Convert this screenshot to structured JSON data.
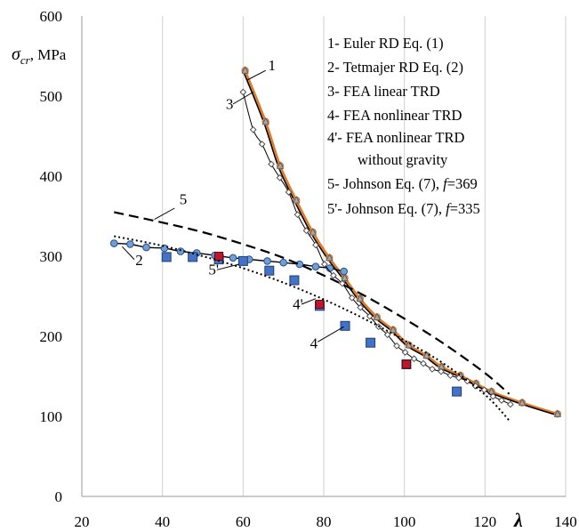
{
  "chart_data": {
    "type": "line",
    "xlabel": "λ",
    "ylabel_symbol": "σ",
    "ylabel_sub": "cr",
    "ylabel_unit": ", MPa",
    "xlim": [
      20,
      140
    ],
    "ylim": [
      0,
      600
    ],
    "x_ticks": [
      20,
      40,
      60,
      80,
      100,
      120,
      140
    ],
    "y_ticks": [
      0,
      100,
      200,
      300,
      400,
      500,
      600
    ],
    "grid": "vertical",
    "legend_position": "top-right",
    "legend": [
      "1- Euler RD Eq. (1)",
      "2- Tetmajer RD Eq. (2)",
      "3- FEA linear TRD",
      "4- FEA nonlinear TRD",
      "4'- FEA nonlinear TRD",
      "without gravity",
      "5- Johnson Eq. (7), f=369",
      "5'- Johnson Eq. (7), f=335"
    ],
    "series": [
      {
        "name": "1",
        "style": "solid-thick-orange-markers",
        "x": [
          60.5,
          65.6,
          69.2,
          73.2,
          77.3,
          81.4,
          85.2,
          89.0,
          93.2,
          97.2,
          101.1,
          105.5,
          109.2,
          113.9,
          117.8,
          121.6,
          129.2,
          138.0
        ],
        "y": [
          532,
          468,
          413,
          370,
          330,
          298,
          273,
          247,
          224,
          208,
          189,
          176,
          162,
          151,
          141,
          131,
          117,
          103
        ]
      },
      {
        "name": "2",
        "style": "solid-thin-blue-circles",
        "x": [
          28.0,
          32.0,
          36.0,
          40.5,
          44.5,
          48.5,
          53.0,
          57.5,
          61.5,
          66.0,
          70.0,
          74.0,
          78.0,
          81.5,
          85.0
        ],
        "y": [
          316,
          315,
          311,
          310,
          306,
          304,
          301,
          298,
          296,
          294,
          292,
          290,
          287,
          285,
          281
        ]
      },
      {
        "name": "3",
        "style": "thin-diamonds",
        "x": [
          60.0,
          62.5,
          64.7,
          67.0,
          69.1,
          71.3,
          73.5,
          75.7,
          78.0,
          80.2,
          82.4,
          84.6,
          87.0,
          89.1,
          91.4,
          93.6,
          95.8,
          98.1,
          100.2,
          102.4,
          104.7,
          106.9,
          109.1,
          111.4,
          113.5,
          115.6,
          117.6,
          119.8,
          122.0,
          124.1,
          126.3
        ],
        "y": [
          505,
          458,
          440,
          415,
          398,
          380,
          352,
          332,
          314,
          290,
          276,
          266,
          248,
          236,
          225,
          212,
          202,
          188,
          180,
          172,
          166,
          159,
          156,
          151,
          148,
          144,
          138,
          133,
          125,
          120,
          115
        ]
      },
      {
        "name": "4",
        "style": "blue-squares",
        "x": [
          41.0,
          47.5,
          54.0,
          60.0,
          66.5,
          72.7,
          79.0,
          85.3,
          91.6,
          100.5,
          113.0
        ],
        "y": [
          299,
          299,
          296,
          294,
          282,
          270,
          238,
          213,
          192,
          165,
          131
        ]
      },
      {
        "name": "4'",
        "style": "red-squares",
        "x": [
          54.0,
          79.0,
          100.5
        ],
        "y": [
          300,
          240,
          165
        ]
      },
      {
        "name": "5",
        "style": "dashed",
        "x": [
          28,
          40,
          50,
          60,
          70,
          80,
          90,
          100,
          110,
          120,
          126
        ],
        "y": [
          355,
          342,
          330,
          315,
          298,
          276,
          251,
          222,
          190,
          154,
          128
        ]
      },
      {
        "name": "5'",
        "style": "dotted",
        "x": [
          28,
          40,
          50,
          60,
          70,
          80,
          90,
          100,
          110,
          120,
          126
        ],
        "y": [
          325,
          313,
          300,
          285,
          267,
          246,
          222,
          195,
          165,
          127,
          95
        ]
      }
    ],
    "callouts": [
      {
        "label": "1",
        "x": 66.2,
        "y": 532
      },
      {
        "label": "3",
        "x": 55.7,
        "y": 484
      },
      {
        "label": "5",
        "x": 44.2,
        "y": 365
      },
      {
        "label": "2",
        "x": 33.3,
        "y": 289
      },
      {
        "label": "5'",
        "x": 51.4,
        "y": 277
      },
      {
        "label": "4'",
        "x": 72.3,
        "y": 234
      },
      {
        "label": "4",
        "x": 76.6,
        "y": 185
      }
    ]
  }
}
